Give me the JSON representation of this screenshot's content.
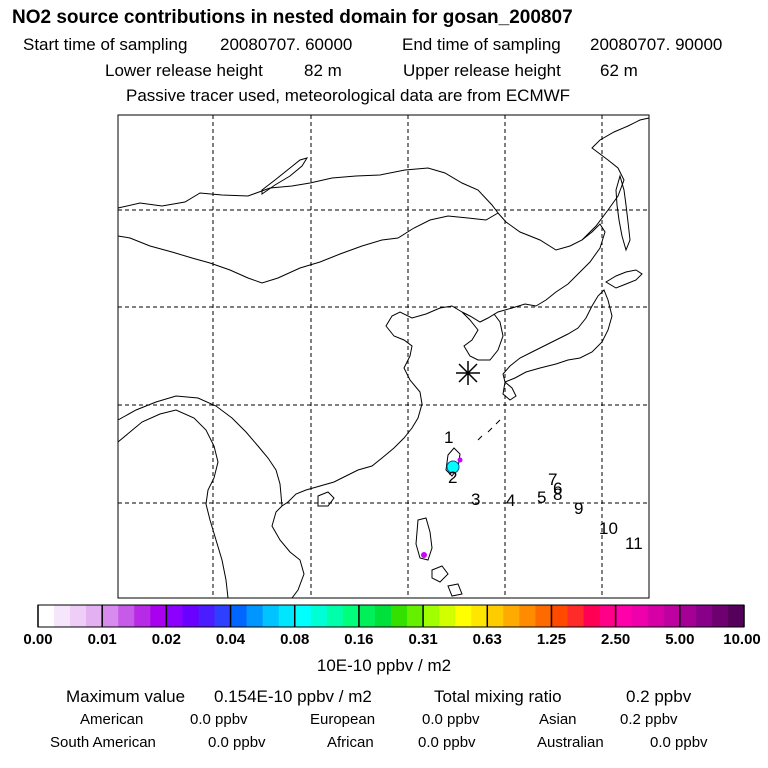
{
  "header": {
    "title": "NO2 source contributions in nested domain for gosan_200807",
    "start_label": "Start time of sampling",
    "start_value": "20080707. 60000",
    "end_label": "End time of sampling",
    "end_value": "20080707. 90000",
    "lower_label": "Lower release height",
    "lower_value": "82 m",
    "upper_label": "Upper release height",
    "upper_value": "62 m",
    "tracer_note": "Passive tracer used, meteorological data are from ECMWF"
  },
  "map": {
    "receptor_symbol": "star-marker",
    "trajectory_points": [
      "1",
      "2",
      "3",
      "4",
      "5",
      "6",
      "7",
      "8",
      "9",
      "10",
      "11"
    ],
    "colors": {
      "land_line": "#000000",
      "grid": "#000000",
      "hotspot_cyan": "#00ffff",
      "hotspot_magenta": "#cc00ff"
    }
  },
  "colorbar": {
    "colors": [
      "#ffffff",
      "#f6e6fb",
      "#eecdf6",
      "#e3b0f2",
      "#d78bee",
      "#c65ae9",
      "#b82be6",
      "#aa00f0",
      "#8b00ff",
      "#6a00ff",
      "#4b1cff",
      "#2f3fff",
      "#0066ff",
      "#0096ff",
      "#00c3ff",
      "#00e6ff",
      "#00ffff",
      "#00ffd5",
      "#00ffaa",
      "#00ff7a",
      "#00f05a",
      "#00e03a",
      "#34e000",
      "#66f000",
      "#a0ff00",
      "#d2ff00",
      "#ffff00",
      "#ffe600",
      "#ffcc00",
      "#ffaa00",
      "#ff8c00",
      "#ff6a00",
      "#ff4a00",
      "#ff2a2a",
      "#ff0055",
      "#ff0088",
      "#ff00aa",
      "#ee00aa",
      "#d600a6",
      "#be00a0",
      "#a40096",
      "#880088",
      "#6e0070",
      "#55005a"
    ],
    "ticks": [
      "0.00",
      "0.01",
      "0.02",
      "0.04",
      "0.08",
      "0.16",
      "0.31",
      "0.63",
      "1.25",
      "2.50",
      "5.00",
      "10.00"
    ],
    "units": "10E-10 ppbv / m2"
  },
  "summary": {
    "max_label": "Maximum value",
    "max_value": "0.154E-10 ppbv / m2",
    "total_label": "Total mixing ratio",
    "total_value": "0.2 ppbv",
    "regions": [
      {
        "name": "American",
        "value": "0.0 ppbv"
      },
      {
        "name": "European",
        "value": "0.0 ppbv"
      },
      {
        "name": "Asian",
        "value": "0.2 ppbv"
      },
      {
        "name": "South American",
        "value": "0.0 ppbv"
      },
      {
        "name": "African",
        "value": "0.0 ppbv"
      },
      {
        "name": "Australian",
        "value": "0.0 ppbv"
      }
    ]
  }
}
